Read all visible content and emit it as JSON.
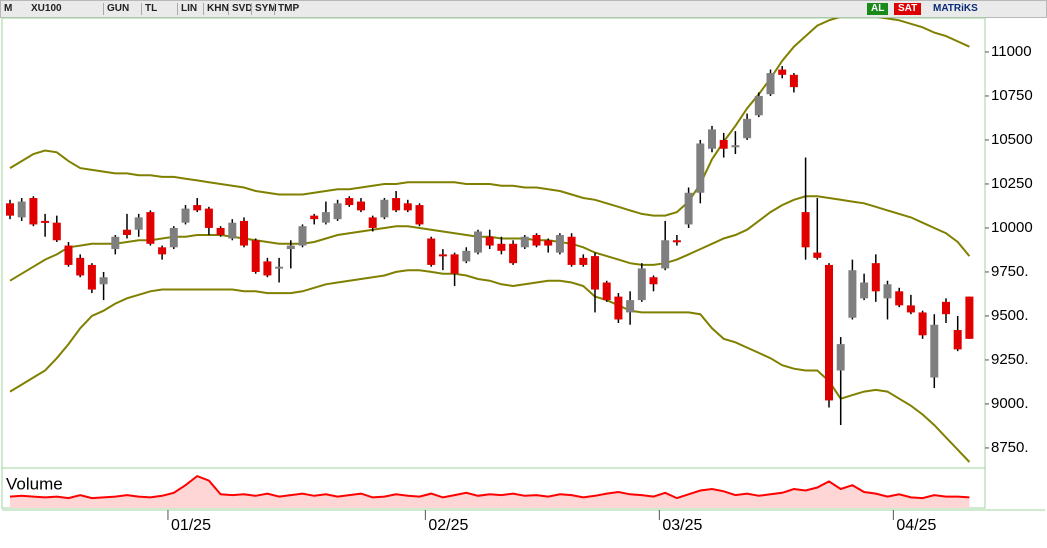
{
  "chart_data": {
    "type": "candlestick",
    "toolbar": [
      "M",
      "XU100",
      "GUN",
      "TL",
      "LIN",
      "KHN",
      "SVD",
      "SYM",
      "TMP",
      "AL",
      "SAT",
      "MATRiKS"
    ],
    "categories": [
      null,
      null,
      null,
      null,
      null,
      null,
      null,
      null,
      null,
      null,
      null,
      null,
      null,
      null,
      "01/25",
      null,
      null,
      null,
      null,
      null,
      null,
      null,
      null,
      null,
      null,
      null,
      null,
      null,
      null,
      null,
      null,
      null,
      null,
      null,
      null,
      null,
      "02/25",
      null,
      null,
      null,
      null,
      null,
      null,
      null,
      null,
      null,
      null,
      null,
      null,
      null,
      null,
      null,
      null,
      null,
      null,
      null,
      "03/25",
      null,
      null,
      null,
      null,
      null,
      null,
      null,
      null,
      null,
      null,
      null,
      null,
      null,
      null,
      null,
      null,
      null,
      null,
      null,
      "04/25",
      null,
      null,
      null,
      null,
      null,
      null
    ],
    "open": [
      10140,
      10060,
      10170,
      10040,
      10030,
      9900,
      9830,
      9790,
      9680,
      9880,
      9990,
      9990,
      10090,
      9890,
      9890,
      10030,
      10130,
      10110,
      10000,
      9940,
      10040,
      9930,
      9810,
      9770,
      9880,
      9900,
      10070,
      10030,
      10050,
      10170,
      10150,
      10060,
      10060,
      10170,
      10140,
      10130,
      9940,
      9850,
      9850,
      9810,
      9860,
      9950,
      9910,
      9910,
      9890,
      9960,
      9930,
      9860,
      9950,
      9830,
      9840,
      9690,
      9610,
      9520,
      9590,
      9720,
      9770,
      9930,
      10020,
      10200,
      10450,
      10500,
      10460,
      10510,
      10640,
      10760,
      10900,
      10870,
      10090,
      9860,
      9790,
      9190,
      9490,
      9600,
      9800,
      9600,
      9640,
      9560,
      9520,
      9150,
      9580,
      9420,
      9610
    ],
    "high": [
      10160,
      10170,
      10180,
      10080,
      10070,
      9920,
      9850,
      9800,
      9750,
      9960,
      10080,
      10080,
      10100,
      9900,
      10010,
      10130,
      10170,
      10120,
      10010,
      10050,
      10060,
      9940,
      9830,
      9830,
      9930,
      10020,
      10080,
      10150,
      10160,
      10180,
      10170,
      10070,
      10170,
      10210,
      10160,
      10140,
      9950,
      9880,
      9860,
      9890,
      9990,
      9990,
      9950,
      9930,
      9960,
      9970,
      9940,
      9970,
      9970,
      9850,
      9860,
      9700,
      9630,
      9640,
      9800,
      9730,
      10040,
      9960,
      10230,
      10500,
      10580,
      10540,
      10550,
      10650,
      10770,
      10900,
      10920,
      10880,
      10400,
      10170,
      9800,
      9380,
      9820,
      9740,
      9850,
      9700,
      9660,
      9620,
      9530,
      9510,
      9600,
      9500,
      9610
    ],
    "low": [
      10050,
      10040,
      10010,
      9950,
      9920,
      9780,
      9720,
      9630,
      9590,
      9850,
      9940,
      9950,
      9900,
      9820,
      9880,
      10020,
      10090,
      9960,
      9950,
      9930,
      9890,
      9740,
      9720,
      9690,
      9770,
      9890,
      10020,
      10020,
      10040,
      10120,
      10090,
      9980,
      10050,
      10090,
      10090,
      10010,
      9780,
      9760,
      9670,
      9800,
      9850,
      9880,
      9850,
      9790,
      9880,
      9890,
      9860,
      9850,
      9780,
      9780,
      9520,
      9580,
      9460,
      9450,
      9580,
      9640,
      9760,
      9900,
      10000,
      10140,
      10430,
      10400,
      10420,
      10500,
      10630,
      10750,
      10850,
      10770,
      9820,
      9820,
      8980,
      8880,
      9480,
      9590,
      9580,
      9480,
      9550,
      9510,
      9370,
      9090,
      9460,
      9300,
      9370
    ],
    "close": [
      10070,
      10150,
      10020,
      10030,
      9930,
      9790,
      9730,
      9650,
      9720,
      9950,
      9960,
      10060,
      9910,
      9850,
      10000,
      10110,
      10100,
      10000,
      9960,
      10030,
      9900,
      9750,
      9730,
      9780,
      9900,
      10010,
      10050,
      10090,
      10140,
      10130,
      10100,
      10000,
      10160,
      10100,
      10100,
      10020,
      9790,
      9840,
      9740,
      9870,
      9980,
      9900,
      9870,
      9800,
      9950,
      9900,
      9900,
      9960,
      9790,
      9790,
      9650,
      9590,
      9480,
      9590,
      9770,
      9680,
      9930,
      9920,
      10200,
      10480,
      10560,
      10450,
      10470,
      10620,
      10750,
      10880,
      10870,
      10800,
      9890,
      9830,
      9020,
      9340,
      9760,
      9690,
      9640,
      9680,
      9560,
      9520,
      9390,
      9450,
      9510,
      9310,
      9370
    ],
    "up_color": "#7f7f7f",
    "down_color": "#e00000",
    "band_color": "#808000",
    "upper": [
      10340,
      10380,
      10420,
      10440,
      10430,
      10380,
      10340,
      10330,
      10320,
      10310,
      10310,
      10300,
      10300,
      10290,
      10290,
      10280,
      10270,
      10260,
      10250,
      10240,
      10230,
      10210,
      10200,
      10190,
      10190,
      10190,
      10200,
      10210,
      10220,
      10220,
      10230,
      10240,
      10250,
      10250,
      10260,
      10260,
      10260,
      10260,
      10260,
      10250,
      10250,
      10250,
      10240,
      10240,
      10230,
      10230,
      10220,
      10210,
      10190,
      10170,
      10160,
      10140,
      10120,
      10100,
      10080,
      10070,
      10070,
      10090,
      10150,
      10250,
      10390,
      10490,
      10580,
      10680,
      10760,
      10850,
      10950,
      11030,
      11090,
      11150,
      11180,
      11200,
      11210,
      11210,
      11200,
      11190,
      11180,
      11160,
      11140,
      11110,
      11090,
      11060,
      11030
    ],
    "middle": [
      9700,
      9740,
      9780,
      9820,
      9850,
      9890,
      9900,
      9910,
      9910,
      9910,
      9920,
      9930,
      9930,
      9940,
      9950,
      9950,
      9960,
      9960,
      9960,
      9950,
      9940,
      9930,
      9920,
      9910,
      9910,
      9910,
      9920,
      9940,
      9960,
      9970,
      9980,
      9990,
      10000,
      10010,
      10010,
      10000,
      9990,
      9980,
      9970,
      9960,
      9950,
      9950,
      9940,
      9940,
      9940,
      9930,
      9930,
      9920,
      9910,
      9890,
      9860,
      9840,
      9820,
      9800,
      9790,
      9790,
      9800,
      9820,
      9850,
      9880,
      9910,
      9940,
      9960,
      9990,
      10040,
      10090,
      10130,
      10160,
      10180,
      10180,
      10170,
      10160,
      10150,
      10140,
      10120,
      10100,
      10080,
      10060,
      10030,
      10000,
      9970,
      9920,
      9840
    ],
    "lower": [
      9070,
      9110,
      9150,
      9190,
      9260,
      9340,
      9430,
      9500,
      9530,
      9570,
      9600,
      9620,
      9640,
      9650,
      9650,
      9650,
      9650,
      9650,
      9650,
      9650,
      9640,
      9640,
      9630,
      9630,
      9630,
      9640,
      9660,
      9680,
      9690,
      9700,
      9710,
      9720,
      9730,
      9750,
      9760,
      9760,
      9750,
      9740,
      9740,
      9730,
      9710,
      9700,
      9680,
      9670,
      9680,
      9690,
      9700,
      9700,
      9690,
      9670,
      9610,
      9590,
      9560,
      9530,
      9520,
      9520,
      9520,
      9520,
      9520,
      9510,
      9430,
      9370,
      9350,
      9320,
      9290,
      9260,
      9220,
      9200,
      9190,
      9190,
      9130,
      9030,
      9050,
      9070,
      9080,
      9070,
      9030,
      8990,
      8940,
      8880,
      8810,
      8740,
      8670
    ],
    "ylim": [
      8636,
      11193
    ],
    "yticks": [
      {
        "value": 8750,
        "label": "8750."
      },
      {
        "value": 9000,
        "label": "9000."
      },
      {
        "value": 9250,
        "label": "9250."
      },
      {
        "value": 9500,
        "label": "9500."
      },
      {
        "value": 9750,
        "label": "9750."
      },
      10000,
      10250,
      10500,
      10750,
      11000
    ],
    "volume": {
      "title": "Volume",
      "color": "#ff0000",
      "ylim": [
        0,
        10
      ],
      "values": [
        3,
        3.2,
        3,
        2.8,
        3,
        2.6,
        3.4,
        2.6,
        2.8,
        3,
        3.4,
        3,
        2.8,
        3.2,
        4,
        6,
        8.4,
        7.2,
        3.6,
        3.4,
        3.6,
        3.2,
        3.8,
        3,
        3.4,
        3.8,
        3.2,
        3.6,
        3,
        3.4,
        3.8,
        2.8,
        3,
        3.6,
        3.2,
        3,
        3.8,
        2.8,
        3.4,
        4,
        3.2,
        3.6,
        3.4,
        3.8,
        3.2,
        3.4,
        3,
        3.6,
        3.4,
        2.8,
        3.2,
        3.8,
        4.2,
        3.6,
        3.4,
        3,
        4,
        2.6,
        3.6,
        4.6,
        5,
        4.4,
        3.4,
        3.8,
        3.2,
        3.6,
        4,
        5,
        4.6,
        5.4,
        7,
        5,
        6,
        4.2,
        3.8,
        3,
        3.6,
        2.8,
        2.6,
        3.4,
        3,
        3,
        2.8
      ]
    }
  }
}
